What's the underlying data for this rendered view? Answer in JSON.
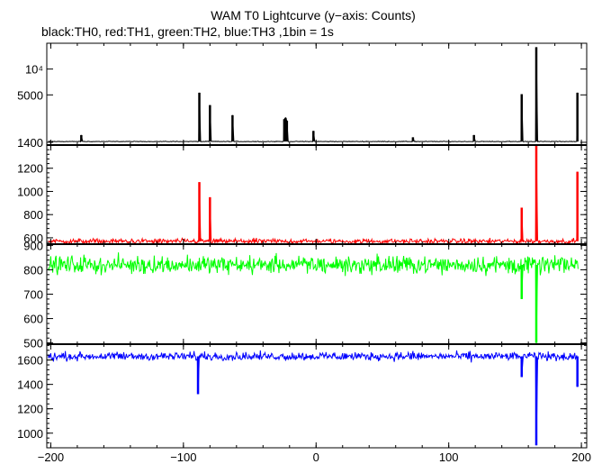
{
  "chart_data": {
    "type": "line",
    "title": "WAM T0 Lightcurve (y−axis: Counts)",
    "subtitle": "black:TH0, red:TH1, green:TH2, blue:TH3 ,1bin = 1s",
    "x_range": [
      -203,
      204
    ],
    "x_ticks": [
      -200,
      -100,
      0,
      100,
      200
    ],
    "x_tick_labels": [
      "−200",
      "−100",
      "0",
      "100",
      "200"
    ],
    "panels": [
      {
        "series_name": "TH0",
        "color": "#000000",
        "y_scale": "log",
        "y_range": [
          1300,
          20000
        ],
        "y_ticks": [
          1400,
          5000,
          10000
        ],
        "y_tick_labels": [
          "1400",
          "5000",
          "10⁴"
        ],
        "baseline": 1430,
        "noise": 10,
        "spikes": [
          {
            "x": -177,
            "y": 1700
          },
          {
            "x": -88,
            "y": 5300
          },
          {
            "x": -80,
            "y": 3800
          },
          {
            "x": -63,
            "y": 2900
          },
          {
            "x": -24,
            "y": 2600
          },
          {
            "x": -23,
            "y": 2700
          },
          {
            "x": -22,
            "y": 2500
          },
          {
            "x": -2,
            "y": 1900
          },
          {
            "x": 73,
            "y": 1600
          },
          {
            "x": 119,
            "y": 1700
          },
          {
            "x": 155,
            "y": 5100
          },
          {
            "x": 166,
            "y": 18000
          },
          {
            "x": 197,
            "y": 5300
          }
        ]
      },
      {
        "series_name": "TH1",
        "color": "#ff0000",
        "y_scale": "linear",
        "y_range": [
          545,
          1400
        ],
        "y_ticks": [
          600,
          800,
          1000,
          1200
        ],
        "y_tick_labels": [
          "600",
          "800",
          "1000",
          "1200"
        ],
        "baseline": 570,
        "noise": 18,
        "spikes": [
          {
            "x": -88,
            "y": 1080
          },
          {
            "x": -80,
            "y": 950
          },
          {
            "x": 155,
            "y": 860
          },
          {
            "x": 166,
            "y": 1400
          },
          {
            "x": 197,
            "y": 1170
          }
        ]
      },
      {
        "series_name": "TH2",
        "color": "#00ff00",
        "y_scale": "linear",
        "y_range": [
          495,
          905
        ],
        "y_ticks": [
          500,
          600,
          700,
          800,
          900
        ],
        "y_tick_labels": [
          "500",
          "600",
          "700",
          "800",
          "900"
        ],
        "baseline": 820,
        "noise": 30,
        "spikes": [
          {
            "x": 155,
            "y": 680
          },
          {
            "x": 166,
            "y": 500
          }
        ]
      },
      {
        "series_name": "TH3",
        "color": "#0000ff",
        "y_scale": "linear",
        "y_range": [
          880,
          1730
        ],
        "y_ticks": [
          1000,
          1200,
          1400,
          1600
        ],
        "y_tick_labels": [
          "1000",
          "1200",
          "1400",
          "1600"
        ],
        "baseline": 1630,
        "noise": 28,
        "spikes": [
          {
            "x": -89,
            "y": 1320
          },
          {
            "x": 155,
            "y": 1460
          },
          {
            "x": 166,
            "y": 900
          },
          {
            "x": 197,
            "y": 1380
          }
        ]
      }
    ]
  }
}
